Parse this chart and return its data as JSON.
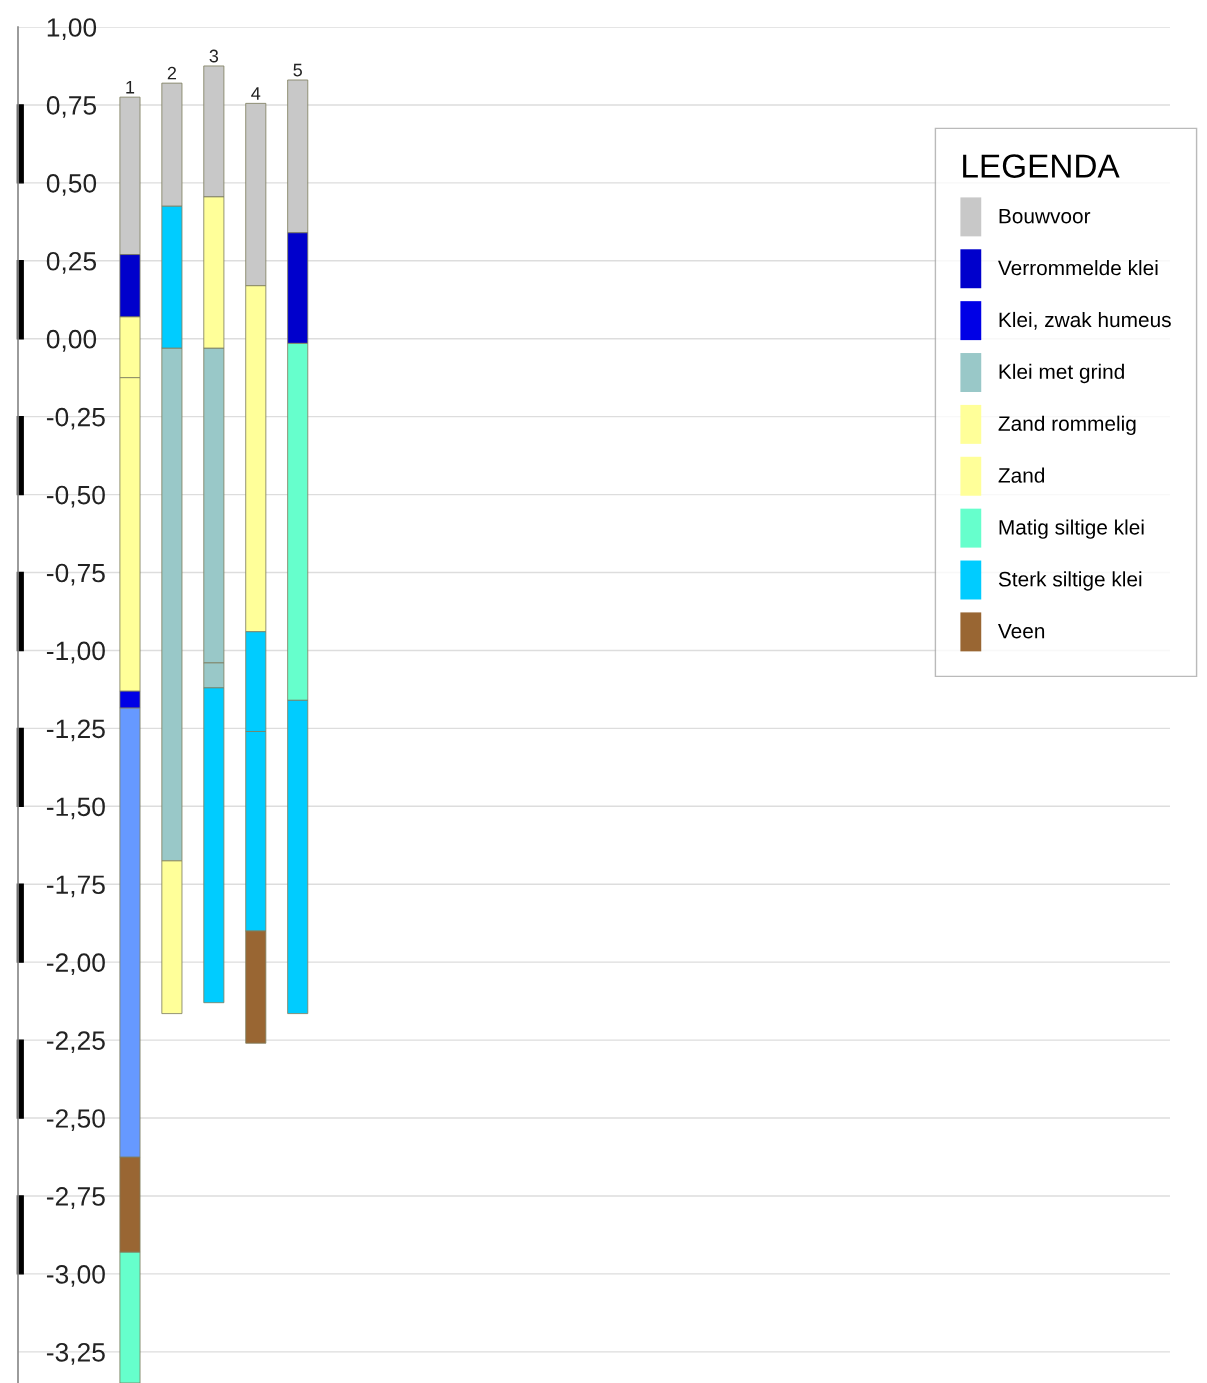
{
  "chart_data": {
    "type": "bar",
    "categories": [
      "1",
      "2",
      "3",
      "4",
      "5"
    ],
    "series": [
      {
        "name": "Bouwvoor",
        "color": "#c8c8c8",
        "base": [
          0.27,
          0.425,
          0.455,
          0.17,
          0.34
        ],
        "values": [
          0.505,
          0.395,
          0.42,
          0.585,
          0.49
        ]
      },
      {
        "name": "Verrommelde klei",
        "color": "#0000cc",
        "base": [
          0.07,
          null,
          null,
          null,
          -0.015
        ],
        "values": [
          0.2,
          null,
          null,
          null,
          0.355
        ]
      },
      {
        "name": "Klei, zwak humeus",
        "color": "#0000e6",
        "base": [
          -1.185,
          null,
          null,
          null,
          null
        ],
        "values": [
          0.055,
          null,
          null,
          null,
          null
        ]
      },
      {
        "name": "Klei met grind",
        "color": "#99c8c8",
        "base": [
          null,
          -1.675,
          -1.04,
          null,
          null
        ],
        "values": [
          null,
          1.645,
          1.01,
          null,
          null
        ]
      },
      {
        "color": "#99c8c8",
        "base": [
          null,
          null,
          -1.12,
          null,
          null
        ],
        "values": [
          null,
          null,
          0.08,
          null,
          null
        ]
      },
      {
        "name": "Zand rommelig",
        "color": "#ffff99",
        "base": [
          -0.125,
          null,
          null,
          null,
          null
        ],
        "values": [
          0.195,
          null,
          null,
          null,
          null
        ]
      },
      {
        "name": "Zand",
        "color": "#ffff99",
        "base": [
          -1.13,
          -2.165,
          -0.03,
          -0.94,
          null
        ],
        "values": [
          1.005,
          0.49,
          0.485,
          1.11,
          null
        ]
      },
      {
        "name": "Matig siltige klei",
        "color": "#66ffcc",
        "base": [
          -3.35,
          null,
          null,
          null,
          -1.16
        ],
        "values": [
          0.42,
          null,
          null,
          null,
          1.145
        ]
      },
      {
        "name": "Sterk siltige klei",
        "color": "#00ccff",
        "base": [
          null,
          -0.03,
          -2.13,
          -1.26,
          -2.165
        ],
        "values": [
          null,
          0.455,
          1.01,
          0.32,
          1.005
        ]
      },
      {
        "color": "#00ccff",
        "base": [
          null,
          null,
          null,
          -1.9,
          null
        ],
        "values": [
          null,
          null,
          null,
          0.64,
          null
        ]
      },
      {
        "name": "Veen",
        "color": "#996633",
        "base": [
          -2.93,
          null,
          null,
          -2.26,
          null
        ],
        "values": [
          0.305,
          null,
          null,
          0.36,
          null
        ]
      },
      {
        "color": "#6699ff",
        "base": [
          -2.625,
          null,
          null,
          null,
          null
        ],
        "values": [
          1.44,
          null,
          null,
          null,
          null
        ]
      }
    ],
    "ylim": [
      -3.35,
      1
    ],
    "yticks": [
      {
        "value": 1,
        "label": "1,00"
      },
      {
        "value": 0.75,
        "label": "0,75"
      },
      {
        "value": 0.5,
        "label": "0,50"
      },
      {
        "value": 0.25,
        "label": "0,25"
      },
      {
        "value": 0,
        "label": "0,00"
      },
      {
        "value": -0.25,
        "label": "-0,25"
      },
      {
        "value": -0.5,
        "label": "-0,50"
      },
      {
        "value": -0.75,
        "label": "-0,75"
      },
      {
        "value": -1,
        "label": "-1,00"
      },
      {
        "value": -1.25,
        "label": "-1,25"
      },
      {
        "value": -1.5,
        "label": "-1,50"
      },
      {
        "value": -1.75,
        "label": "-1,75"
      },
      {
        "value": -2,
        "label": "-2,00"
      },
      {
        "value": -2.25,
        "label": "-2,25"
      },
      {
        "value": -2.5,
        "label": "-2,50"
      },
      {
        "value": -2.75,
        "label": "-2,75"
      },
      {
        "value": -3,
        "label": "-3,00"
      },
      {
        "value": -3.25,
        "label": "-3,25"
      }
    ],
    "grid": "y",
    "legend": "top right",
    "legend_title": "LEGENDA",
    "tick_labels": "y"
  }
}
